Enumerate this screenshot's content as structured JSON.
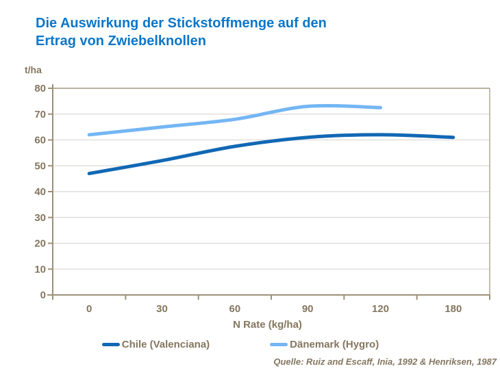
{
  "title": {
    "lines": [
      "Die Auswirkung der Stickstoffmenge auf den",
      "Ertrag von Zwiebelknollen"
    ]
  },
  "y_unit_label": "t/ha",
  "source_note": "Quelle: Ruiz and Escaff, Inia, 1992 & Henriksen, 1987",
  "chart_data": {
    "type": "line",
    "title": "Die Auswirkung der Stickstoffmenge auf den Ertrag von Zwiebelknollen",
    "xlabel": "N Rate (kg/ha)",
    "ylabel": "t/ha",
    "categories": [
      "0",
      "30",
      "60",
      "90",
      "120",
      "180"
    ],
    "ylim": [
      0,
      80
    ],
    "yticks": [
      0,
      10,
      20,
      30,
      40,
      50,
      60,
      70,
      80
    ],
    "grid": true,
    "legend_position": "bottom",
    "series": [
      {
        "name": "Chile (Valenciana)",
        "color": "#1168b4",
        "values": [
          47,
          52,
          57.5,
          61,
          62,
          61
        ]
      },
      {
        "name": "Dänemark (Hygro)",
        "color": "#74b6f4",
        "values": [
          62,
          65,
          68,
          73,
          72.5
        ]
      }
    ]
  },
  "colors": {
    "title_text": "#0b76c8",
    "axis_text": "#84765f",
    "axis_line": "#9d9078",
    "gridline": "#dcdad7",
    "plot_border": "#b2a794"
  }
}
